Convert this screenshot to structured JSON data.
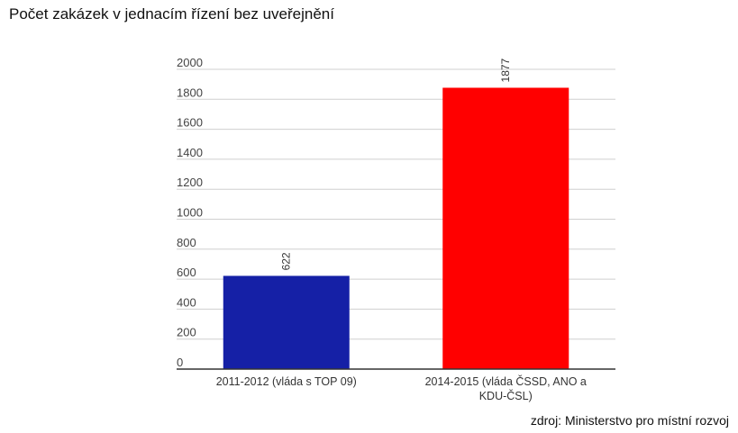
{
  "chart_data": {
    "type": "bar",
    "title": "Počet zakázek v jednacím řízení bez uveřejnění",
    "categories": [
      [
        "2011-2012 (vláda s TOP 09)"
      ],
      [
        "2014-2015 (vláda ČSSD, ANO a",
        "KDU-ČSL)"
      ]
    ],
    "values": [
      622,
      1877
    ],
    "data_labels": [
      "622",
      "1877"
    ],
    "colors": [
      "#1520a6",
      "#ff0000"
    ],
    "ylim": [
      0,
      2000
    ],
    "yticks": [
      "0",
      "200",
      "400",
      "600",
      "800",
      "1000",
      "1200",
      "1400",
      "1600",
      "1800",
      "2000"
    ],
    "grid": true,
    "legend": "none"
  },
  "source": "zdroj: Ministerstvo pro místní rozvoj"
}
